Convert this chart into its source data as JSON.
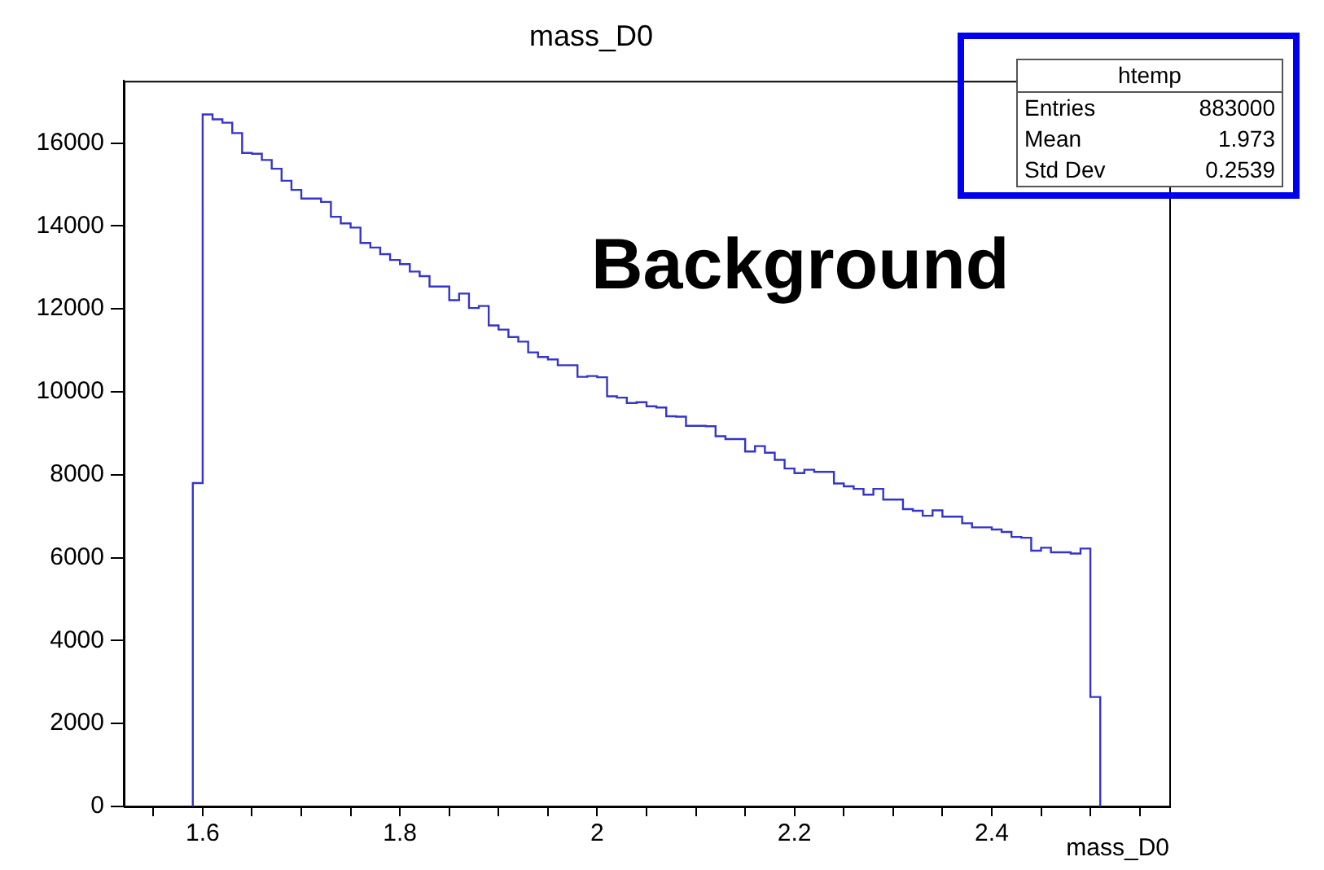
{
  "chart_data": {
    "type": "histogram",
    "title": "mass_D0",
    "xlabel": "mass_D0",
    "bins": [
      1.59,
      1.6,
      1.61,
      1.62,
      1.63,
      1.64,
      1.65,
      1.66,
      1.67,
      1.68,
      1.69,
      1.7,
      1.71,
      1.72,
      1.73,
      1.74,
      1.75,
      1.76,
      1.77,
      1.78,
      1.79,
      1.8,
      1.81,
      1.82,
      1.83,
      1.84,
      1.85,
      1.86,
      1.87,
      1.88,
      1.89,
      1.9,
      1.91,
      1.92,
      1.93,
      1.94,
      1.95,
      1.96,
      1.97,
      1.98,
      1.99,
      2.0,
      2.01,
      2.02,
      2.03,
      2.04,
      2.05,
      2.06,
      2.07,
      2.08,
      2.09,
      2.1,
      2.11,
      2.12,
      2.13,
      2.14,
      2.15,
      2.16,
      2.17,
      2.18,
      2.19,
      2.2,
      2.21,
      2.22,
      2.23,
      2.24,
      2.25,
      2.26,
      2.27,
      2.28,
      2.29,
      2.3,
      2.31,
      2.32,
      2.33,
      2.34,
      2.35,
      2.36,
      2.37,
      2.38,
      2.39,
      2.4,
      2.41,
      2.42,
      2.43,
      2.44,
      2.45,
      2.46,
      2.47,
      2.48,
      2.49,
      2.5,
      2.51
    ],
    "values": [
      7800,
      16690,
      16570,
      16490,
      16240,
      15760,
      15740,
      15590,
      15380,
      15090,
      14870,
      14660,
      14660,
      14580,
      14220,
      14060,
      13960,
      13590,
      13480,
      13320,
      13180,
      13080,
      12900,
      12790,
      12540,
      12540,
      12210,
      12370,
      12020,
      12070,
      11600,
      11500,
      11320,
      11210,
      10950,
      10840,
      10780,
      10640,
      10640,
      10360,
      10380,
      10350,
      9890,
      9860,
      9730,
      9750,
      9650,
      9620,
      9410,
      9400,
      9180,
      9180,
      9170,
      8930,
      8860,
      8860,
      8560,
      8690,
      8530,
      8360,
      8150,
      8040,
      8120,
      8070,
      8070,
      7790,
      7720,
      7660,
      7520,
      7660,
      7400,
      7400,
      7170,
      7130,
      7010,
      7140,
      6990,
      6990,
      6830,
      6730,
      6730,
      6680,
      6620,
      6500,
      6480,
      6170,
      6240,
      6130,
      6130,
      6100,
      6220,
      2640
    ],
    "color": "#3535c8",
    "xlim": [
      1.52,
      2.58
    ],
    "xticks": [
      {
        "value": 1.55,
        "label": null
      },
      {
        "value": 1.6,
        "label": "1.6"
      },
      {
        "value": 1.65,
        "label": null
      },
      {
        "value": 1.7,
        "label": null
      },
      {
        "value": 1.75,
        "label": null
      },
      {
        "value": 1.8,
        "label": "1.8"
      },
      {
        "value": 1.85,
        "label": null
      },
      {
        "value": 1.9,
        "label": null
      },
      {
        "value": 1.95,
        "label": null
      },
      2,
      {
        "value": 2.05,
        "label": null
      },
      {
        "value": 2.1,
        "label": null
      },
      {
        "value": 2.15,
        "label": null
      },
      {
        "value": 2.2,
        "label": "2.2"
      },
      {
        "value": 2.25,
        "label": null
      },
      {
        "value": 2.3,
        "label": null
      },
      {
        "value": 2.35,
        "label": null
      },
      {
        "value": 2.4,
        "label": "2.4"
      },
      {
        "value": 2.45,
        "label": null
      },
      {
        "value": 2.5,
        "label": null
      },
      {
        "value": 2.55,
        "label": null
      }
    ],
    "ylim": [
      0,
      17500
    ],
    "yticks": [
      0,
      2000,
      4000,
      6000,
      8000,
      10000,
      12000,
      14000,
      16000
    ],
    "annotations": [
      "Background",
      "htemp",
      "Entries",
      "883000",
      "Mean",
      "1.973",
      "Std Dev",
      "0.2539"
    ]
  }
}
